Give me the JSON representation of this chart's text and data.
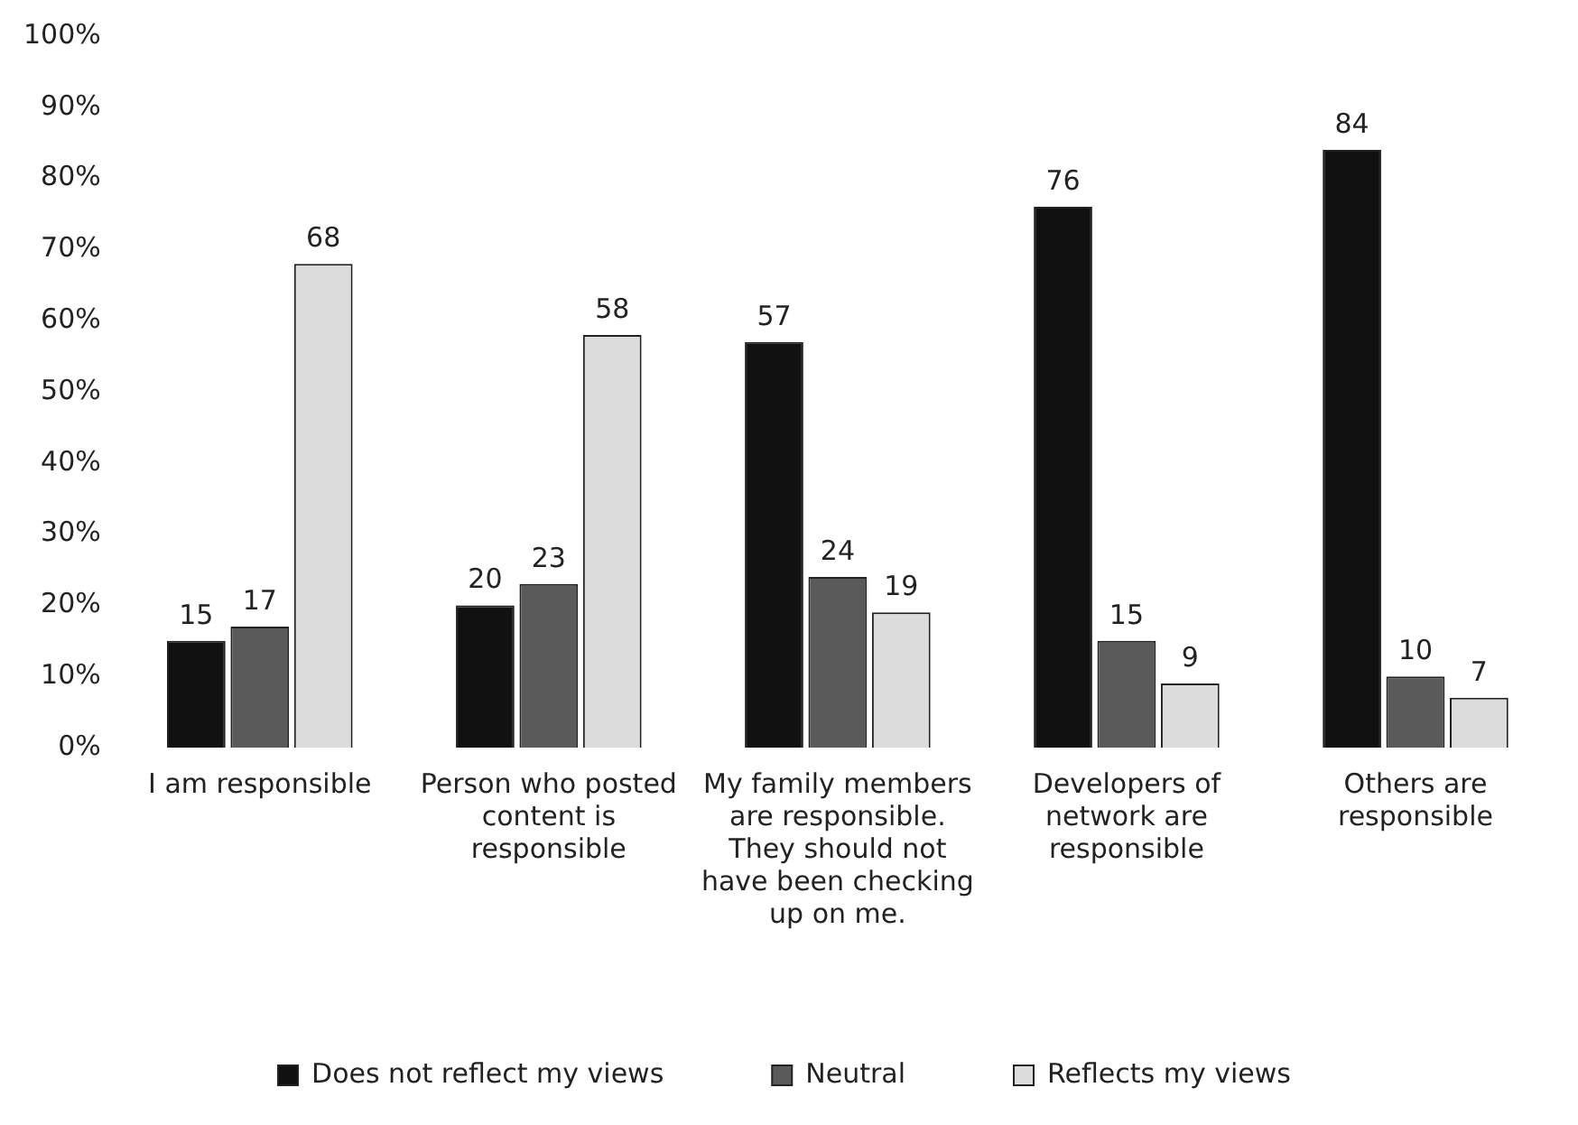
{
  "chart_data": {
    "type": "bar",
    "categories": [
      "I am responsible",
      "Person who posted content is responsible",
      "My family members are responsible. They should not have been checking up on me.",
      "Developers of network are responsible",
      "Others are responsible"
    ],
    "series": [
      {
        "name": "Does not reflect my views",
        "color": "#111111",
        "values": [
          15,
          20,
          57,
          76,
          84
        ]
      },
      {
        "name": "Neutral",
        "color": "#5a5a5a",
        "values": [
          17,
          23,
          24,
          15,
          10
        ]
      },
      {
        "name": "Reflects my views",
        "color": "#dcdcdc",
        "values": [
          68,
          58,
          19,
          9,
          7
        ]
      }
    ],
    "ylim": [
      0,
      100
    ],
    "yticks": [
      {
        "value": 0,
        "label": "0%"
      },
      {
        "value": 10,
        "label": "10%"
      },
      {
        "value": 20,
        "label": "20%"
      },
      {
        "value": 30,
        "label": "30%"
      },
      {
        "value": 40,
        "label": "40%"
      },
      {
        "value": 50,
        "label": "50%"
      },
      {
        "value": 60,
        "label": "60%"
      },
      {
        "value": 70,
        "label": "70%"
      },
      {
        "value": 80,
        "label": "80%"
      },
      {
        "value": 90,
        "label": "90%"
      },
      {
        "value": 100,
        "label": "100%"
      }
    ],
    "grid": false,
    "legend": "bottom",
    "data_labels": true
  }
}
